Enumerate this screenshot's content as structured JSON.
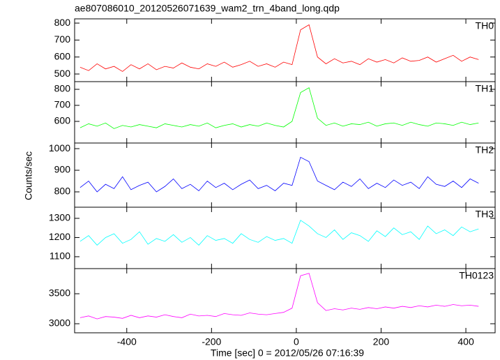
{
  "chart_data": {
    "type": "line",
    "title": "ae807086010_20120526071639_wam2_trn_4band_long.qdp",
    "xlabel": "Time [sec] 0 = 2012/05/26 07:16:39",
    "ylabel": "Counts/sec",
    "xlim": [
      -523,
      469
    ],
    "xticks": [
      -400,
      -200,
      0,
      200,
      400
    ],
    "x": [
      -510,
      -490,
      -470,
      -450,
      -430,
      -410,
      -390,
      -370,
      -350,
      -330,
      -310,
      -290,
      -270,
      -250,
      -230,
      -210,
      -190,
      -170,
      -150,
      -130,
      -110,
      -90,
      -70,
      -50,
      -30,
      -10,
      10,
      30,
      50,
      70,
      90,
      110,
      130,
      150,
      170,
      190,
      210,
      230,
      250,
      270,
      290,
      310,
      330,
      350,
      370,
      390,
      410,
      430
    ],
    "series": [
      {
        "name": "TH0",
        "color": "#ff0000",
        "ylim": [
          455,
          825
        ],
        "yticks": [
          500,
          600,
          700,
          800
        ],
        "values": [
          540,
          520,
          560,
          530,
          545,
          515,
          555,
          530,
          560,
          525,
          545,
          535,
          565,
          540,
          530,
          560,
          545,
          570,
          540,
          555,
          575,
          545,
          560,
          540,
          570,
          555,
          760,
          790,
          600,
          560,
          590,
          565,
          575,
          555,
          590,
          570,
          585,
          565,
          595,
          575,
          580,
          600,
          570,
          590,
          610,
          575,
          600,
          585
        ]
      },
      {
        "name": "TH1",
        "color": "#00ff00",
        "ylim": [
          465,
          848
        ],
        "yticks": [
          600,
          700,
          800
        ],
        "values": [
          560,
          585,
          570,
          590,
          555,
          575,
          565,
          580,
          570,
          560,
          585,
          575,
          565,
          580,
          570,
          590,
          560,
          575,
          585,
          565,
          580,
          570,
          590,
          575,
          565,
          600,
          780,
          810,
          620,
          575,
          590,
          570,
          585,
          580,
          595,
          570,
          585,
          590,
          575,
          595,
          580,
          570,
          590,
          585,
          575,
          595,
          580,
          590
        ]
      },
      {
        "name": "TH2",
        "color": "#0000ff",
        "ylim": [
          729,
          1026
        ],
        "yticks": [
          800,
          900,
          1000
        ],
        "values": [
          820,
          850,
          800,
          835,
          815,
          870,
          810,
          830,
          845,
          800,
          825,
          860,
          815,
          835,
          805,
          850,
          820,
          840,
          810,
          835,
          855,
          815,
          830,
          805,
          840,
          830,
          960,
          940,
          850,
          830,
          810,
          845,
          825,
          860,
          815,
          840,
          820,
          855,
          830,
          845,
          815,
          870,
          835,
          825,
          850,
          820,
          860,
          840
        ]
      },
      {
        "name": "TH3",
        "color": "#00ffff",
        "ylim": [
          1038,
          1358
        ],
        "yticks": [
          1100,
          1200,
          1300
        ],
        "values": [
          1180,
          1210,
          1160,
          1200,
          1220,
          1170,
          1190,
          1230,
          1165,
          1195,
          1180,
          1215,
          1175,
          1200,
          1160,
          1210,
          1185,
          1195,
          1170,
          1220,
          1190,
          1175,
          1205,
          1185,
          1195,
          1170,
          1290,
          1260,
          1220,
          1200,
          1240,
          1190,
          1225,
          1210,
          1180,
          1235,
          1205,
          1250,
          1215,
          1230,
          1190,
          1260,
          1220,
          1240,
          1210,
          1255,
          1230,
          1245
        ]
      },
      {
        "name": "TH0123",
        "color": "#ff00ff",
        "ylim": [
          2849,
          3919
        ],
        "yticks": [
          3000,
          3500
        ],
        "values": [
          3100,
          3130,
          3080,
          3120,
          3110,
          3090,
          3140,
          3100,
          3130,
          3110,
          3150,
          3120,
          3100,
          3160,
          3130,
          3140,
          3120,
          3170,
          3150,
          3140,
          3180,
          3160,
          3150,
          3170,
          3190,
          3260,
          3800,
          3840,
          3350,
          3220,
          3250,
          3230,
          3260,
          3240,
          3270,
          3250,
          3280,
          3260,
          3290,
          3270,
          3300,
          3280,
          3310,
          3290,
          3320,
          3300,
          3310,
          3290
        ]
      }
    ]
  }
}
